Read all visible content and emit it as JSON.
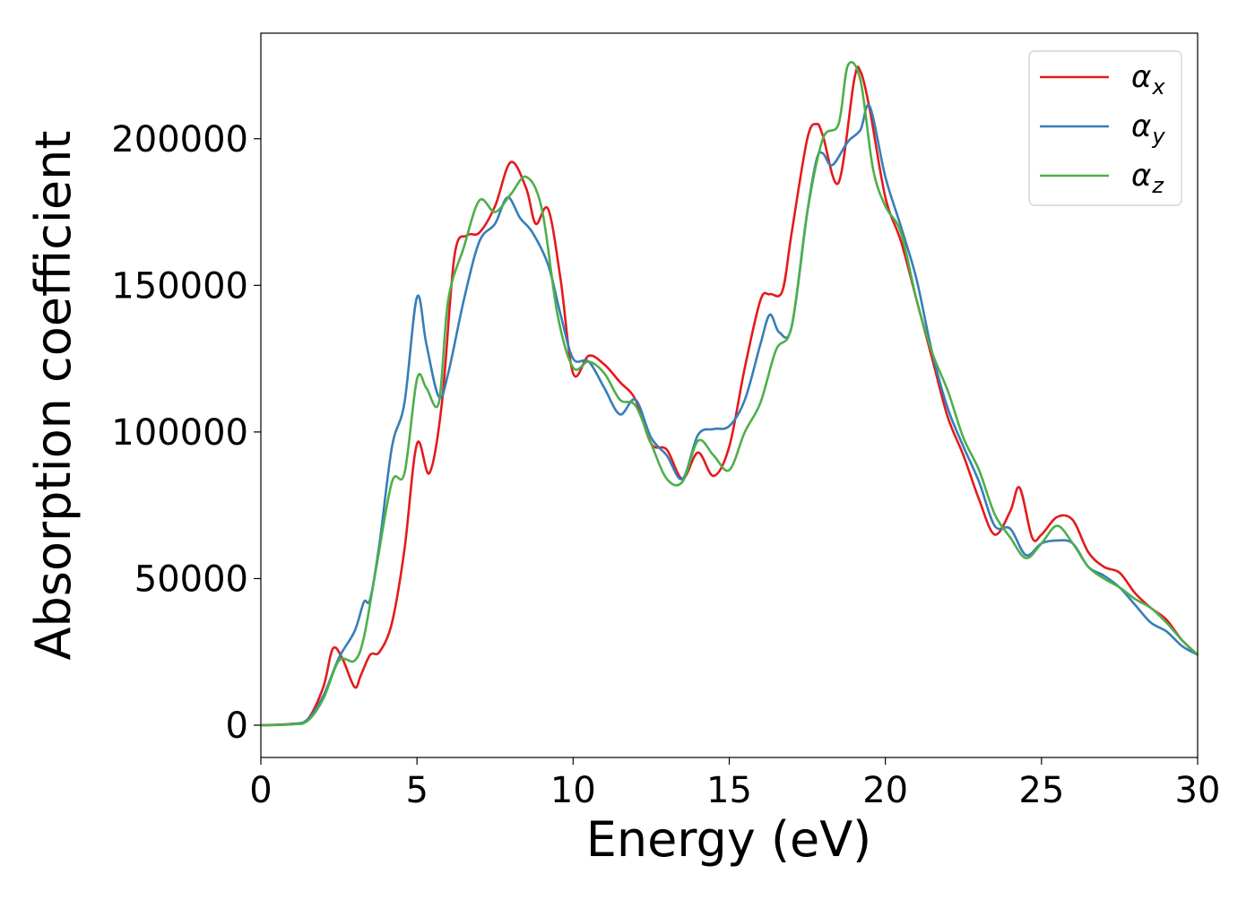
{
  "chart_data": {
    "type": "line",
    "title": "",
    "xlabel": "Energy (eV)",
    "ylabel": "Absorption coefficient",
    "xlim": [
      0,
      30
    ],
    "ylim": [
      -11000,
      236000
    ],
    "xticks": [
      0,
      5,
      10,
      15,
      20,
      25,
      30
    ],
    "yticks": [
      0,
      50000,
      100000,
      150000,
      200000
    ],
    "grid": false,
    "legend_position": "top-right",
    "series": [
      {
        "name": "αx",
        "label_base": "α",
        "label_sub": "x",
        "color": "#e41a1c",
        "x": [
          0,
          1,
          1.5,
          2,
          2.3,
          2.6,
          3,
          3.2,
          3.5,
          3.8,
          4.2,
          4.6,
          5,
          5.4,
          5.8,
          6.2,
          6.6,
          7,
          7.5,
          8,
          8.5,
          8.8,
          9.2,
          9.6,
          10,
          10.5,
          11,
          11.5,
          12,
          12.5,
          13,
          13.5,
          14,
          14.5,
          15,
          15.5,
          16,
          16.3,
          16.7,
          17,
          17.5,
          17.8,
          18,
          18.5,
          19,
          19.2,
          19.5,
          20,
          20.5,
          21,
          21.5,
          22,
          22.5,
          23,
          23.5,
          24,
          24.3,
          24.7,
          25,
          25.5,
          26,
          26.5,
          27,
          27.5,
          28,
          28.5,
          29,
          29.5,
          30
        ],
        "y": [
          0,
          500,
          2000,
          13000,
          26000,
          23000,
          13000,
          17000,
          24000,
          25000,
          35000,
          60000,
          96000,
          86000,
          110000,
          160000,
          167000,
          168000,
          177000,
          192000,
          183000,
          171000,
          176000,
          152000,
          120000,
          126000,
          123000,
          117000,
          111000,
          96000,
          94000,
          84000,
          93000,
          85000,
          95000,
          122000,
          145000,
          147000,
          148000,
          168000,
          200000,
          205000,
          201000,
          185000,
          220000,
          223000,
          210000,
          180000,
          165000,
          145000,
          125000,
          105000,
          92000,
          77000,
          65000,
          73000,
          81000,
          64000,
          65000,
          71000,
          70000,
          59000,
          54000,
          52000,
          45000,
          40000,
          36000,
          29000,
          24000
        ]
      },
      {
        "name": "αy",
        "label_base": "α",
        "label_sub": "y",
        "color": "#377eb8",
        "x": [
          0,
          1,
          1.5,
          2,
          2.5,
          3,
          3.3,
          3.5,
          3.8,
          4.2,
          4.6,
          5,
          5.3,
          5.7,
          6,
          6.5,
          7,
          7.5,
          7.9,
          8.3,
          8.7,
          9.2,
          9.6,
          10,
          10.5,
          11,
          11.5,
          12,
          12.5,
          13,
          13.5,
          14,
          14.5,
          15,
          15.5,
          16,
          16.3,
          16.6,
          17,
          17.5,
          17.8,
          18,
          18.3,
          18.8,
          19.2,
          19.5,
          20,
          20.5,
          21,
          21.5,
          22,
          22.5,
          23,
          23.5,
          24,
          24.5,
          25,
          25.5,
          26,
          26.5,
          27,
          27.5,
          28,
          28.5,
          29,
          29.5,
          30
        ],
        "y": [
          0,
          400,
          2000,
          10000,
          23000,
          32000,
          42000,
          43000,
          62000,
          95000,
          110000,
          146000,
          130000,
          112000,
          120000,
          145000,
          165000,
          171000,
          180000,
          173000,
          168000,
          157000,
          140000,
          125000,
          124000,
          115000,
          106000,
          111000,
          98000,
          92000,
          84000,
          99000,
          101000,
          102000,
          111000,
          130000,
          140000,
          134000,
          136000,
          175000,
          193000,
          195000,
          191000,
          199000,
          203000,
          211000,
          187000,
          170000,
          152000,
          127000,
          108000,
          95000,
          83000,
          68000,
          67000,
          58000,
          62000,
          63000,
          62000,
          54000,
          51000,
          47000,
          41000,
          35000,
          32000,
          27000,
          24000
        ]
      },
      {
        "name": "αz",
        "label_base": "α",
        "label_sub": "z",
        "color": "#4daf4a",
        "x": [
          0,
          1,
          1.5,
          2,
          2.5,
          3,
          3.3,
          3.7,
          4.2,
          4.6,
          5,
          5.3,
          5.7,
          6,
          6.5,
          7,
          7.5,
          8,
          8.5,
          9,
          9.5,
          10,
          10.5,
          11,
          11.5,
          12,
          12.5,
          13,
          13.5,
          14,
          14.5,
          15,
          15.5,
          16,
          16.5,
          17,
          17.5,
          18,
          18.5,
          18.8,
          19.2,
          19.6,
          20,
          20.5,
          21,
          21.5,
          22,
          22.5,
          23,
          23.5,
          24,
          24.5,
          25,
          25.5,
          26,
          26.5,
          27,
          27.5,
          28,
          28.5,
          29,
          29.5,
          30
        ],
        "y": [
          0,
          300,
          1500,
          9000,
          22000,
          22000,
          30000,
          54000,
          83000,
          86000,
          118000,
          115000,
          110000,
          145000,
          163000,
          179000,
          175000,
          181000,
          187000,
          176000,
          140000,
          122000,
          124000,
          120000,
          111000,
          109000,
          96000,
          84000,
          83000,
          97000,
          92000,
          87000,
          100000,
          110000,
          128000,
          136000,
          175000,
          200000,
          205000,
          225000,
          220000,
          190000,
          177000,
          168000,
          145000,
          127000,
          114000,
          98000,
          87000,
          72000,
          64000,
          57000,
          62000,
          68000,
          62000,
          54000,
          50000,
          47000,
          43000,
          40000,
          35000,
          29000,
          24000
        ]
      }
    ]
  }
}
